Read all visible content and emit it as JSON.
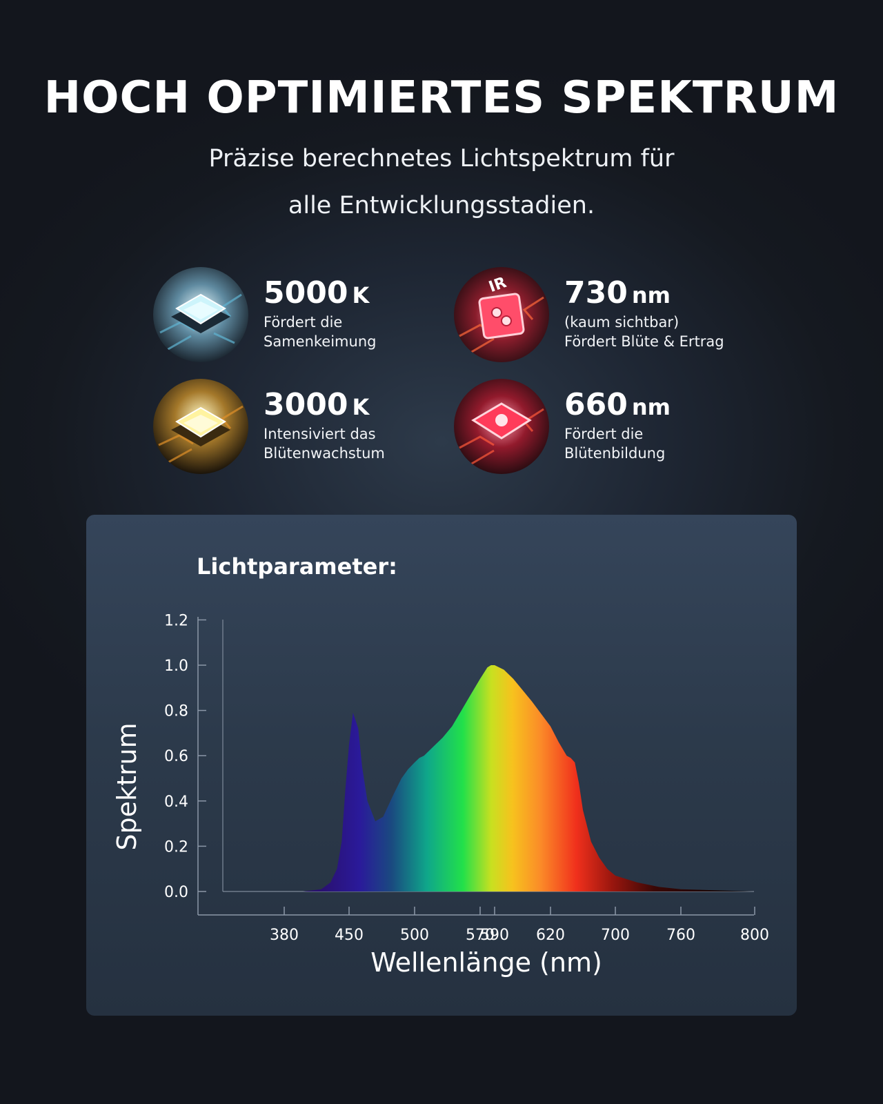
{
  "header": {
    "title": "HOCH OPTIMIERTES SPEKTRUM",
    "subtitle_line1": "Präzise berechnetes Lichtspektrum für",
    "subtitle_line2": "alle Entwicklungsstadien."
  },
  "features": [
    {
      "value": "5000",
      "unit": "K",
      "line1": "Fördert die",
      "line2": "Samenkeimung",
      "icon": "white-led-chip-icon",
      "color": "#bfe8f2"
    },
    {
      "value": "730",
      "unit": "nm",
      "line1": "(kaum sichtbar)",
      "line2": "Fördert Blüte & Ertrag",
      "icon": "infrared-led-chip-icon",
      "color": "#ff3a5c",
      "badge": "IR"
    },
    {
      "value": "3000",
      "unit": "K",
      "line1": "Intensiviert das",
      "line2": "Blütenwachstum",
      "icon": "warm-white-led-chip-icon",
      "color": "#ffe98a"
    },
    {
      "value": "660",
      "unit": "nm",
      "line1": "Fördert die",
      "line2": "Blütenbildung",
      "icon": "red-led-chip-icon",
      "color": "#ff2a4a"
    }
  ],
  "panel": {
    "title": "Lichtparameter:"
  },
  "chart_data": {
    "type": "area",
    "xlabel": "Wellenlänge (nm)",
    "ylabel": "Spektrum",
    "x_ticks": [
      380,
      450,
      500,
      570,
      590,
      620,
      700,
      760,
      800
    ],
    "y_ticks": [
      "0.0",
      "0.2",
      "0.4",
      "0.6",
      "0.8",
      "1.0",
      "1.2"
    ],
    "ylim": [
      0,
      1.2
    ],
    "grid": false,
    "series": [
      {
        "x": [
          380,
          400,
          420,
          430,
          437,
          442,
          446,
          450,
          453,
          457,
          460,
          464,
          470,
          476,
          480,
          484,
          490,
          495,
          500,
          505,
          510,
          520,
          530,
          540,
          550,
          560,
          570,
          580,
          585,
          590,
          595,
          600,
          610,
          620,
          630,
          640,
          645,
          650,
          655,
          660,
          670,
          680,
          690,
          700,
          720,
          740,
          760,
          780,
          800
        ],
        "y": [
          0.0,
          0.0,
          0.01,
          0.04,
          0.1,
          0.22,
          0.45,
          0.65,
          0.79,
          0.72,
          0.55,
          0.4,
          0.31,
          0.33,
          0.38,
          0.43,
          0.5,
          0.54,
          0.57,
          0.59,
          0.6,
          0.64,
          0.68,
          0.73,
          0.8,
          0.87,
          0.94,
          0.99,
          1.0,
          1.0,
          0.98,
          0.94,
          0.84,
          0.73,
          0.66,
          0.6,
          0.59,
          0.57,
          0.48,
          0.36,
          0.22,
          0.15,
          0.1,
          0.07,
          0.04,
          0.02,
          0.01,
          0.005,
          0.0
        ]
      }
    ]
  }
}
